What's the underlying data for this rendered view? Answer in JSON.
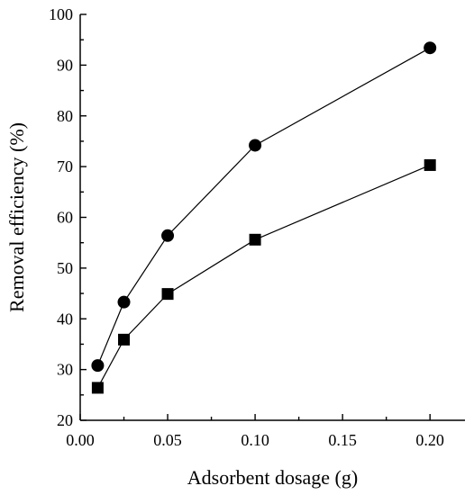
{
  "chart_data": {
    "type": "line",
    "xlabel": "Adsorbent dosage (g)",
    "ylabel": "Removal efficiency (%)",
    "xlim": [
      0,
      0.22
    ],
    "ylim": [
      20,
      100
    ],
    "x_ticks": [
      0.0,
      0.05,
      0.1,
      0.15,
      0.2
    ],
    "x_tick_labels": [
      "0.00",
      "0.05",
      "0.10",
      "0.15",
      "0.20"
    ],
    "y_ticks": [
      20,
      30,
      40,
      50,
      60,
      70,
      80,
      90,
      100
    ],
    "y_tick_labels": [
      "20",
      "30",
      "40",
      "50",
      "60",
      "70",
      "80",
      "90",
      "100"
    ],
    "grid": false,
    "series": [
      {
        "marker": "circle",
        "color": "#000000",
        "x": [
          0.01,
          0.025,
          0.05,
          0.1,
          0.2
        ],
        "y": [
          30.8,
          43.3,
          56.4,
          74.2,
          93.4
        ]
      },
      {
        "marker": "square",
        "color": "#000000",
        "x": [
          0.01,
          0.025,
          0.05,
          0.1,
          0.2
        ],
        "y": [
          26.4,
          35.9,
          44.9,
          55.6,
          70.3
        ]
      }
    ]
  }
}
